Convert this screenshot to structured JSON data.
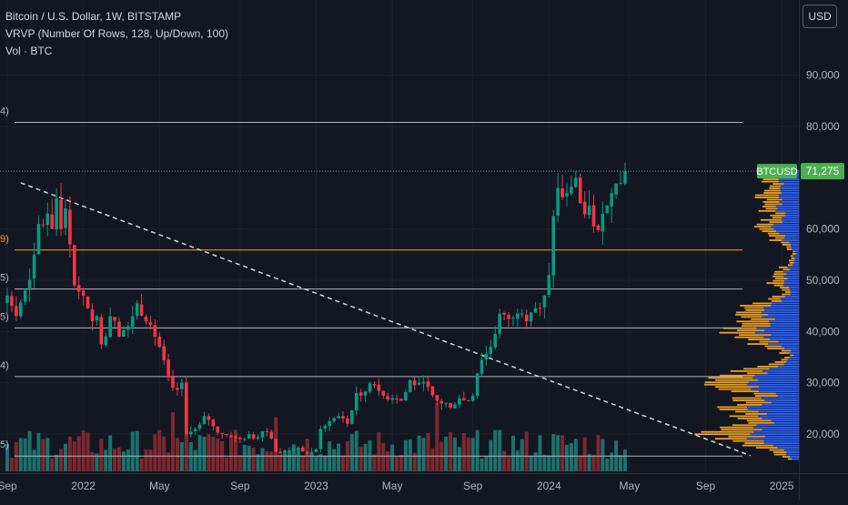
{
  "legend": {
    "symbol_line": "Bitcoin / U.S. Dollar, 1W, BITSTAMP",
    "vrvp_line": "VRVP (Number Of Rows, 128, Up/Down, 100)",
    "vol_line": "Vol · BTC"
  },
  "currency_button": "USD",
  "price_axis": {
    "ticks": [
      {
        "label": "90,000",
        "value": 90000
      },
      {
        "label": "80,000",
        "value": 80000
      },
      {
        "label": "60,000",
        "value": 60000
      },
      {
        "label": "50,000",
        "value": 50000
      },
      {
        "label": "40,000",
        "value": 40000
      },
      {
        "label": "30,000",
        "value": 30000
      },
      {
        "label": "20,000",
        "value": 20000
      }
    ]
  },
  "time_axis": {
    "ticks": [
      {
        "label": "Sep",
        "week": 0
      },
      {
        "label": "2022",
        "week": 17
      },
      {
        "label": "May",
        "week": 34
      },
      {
        "label": "Sep",
        "week": 52
      },
      {
        "label": "2023",
        "week": 69
      },
      {
        "label": "May",
        "week": 86
      },
      {
        "label": "Sep",
        "week": 104
      },
      {
        "label": "2024",
        "week": 121
      },
      {
        "label": "May",
        "week": 139
      },
      {
        "label": "Sep",
        "week": 156
      },
      {
        "label": "2025",
        "week": 173
      }
    ]
  },
  "last_price": {
    "symbol_label": "BTCUSD",
    "value_label": "71,275",
    "value": 71275,
    "color": "#4caf50"
  },
  "horizontal_levels": [
    {
      "price": 80800,
      "color": "#b2b5be",
      "edge_label": "4)"
    },
    {
      "price": 55900,
      "color": "#f7a21b",
      "edge_label": "9)"
    },
    {
      "price": 48300,
      "color": "#b2b5be",
      "edge_label": "5)"
    },
    {
      "price": 40700,
      "color": "#b2b5be",
      "edge_label": "5)"
    },
    {
      "price": 31200,
      "color": "#b2b5be",
      "edge_label": "4)"
    },
    {
      "price": 15700,
      "color": "#b2b5be",
      "edge_label": "5)"
    }
  ],
  "trendline": {
    "from": {
      "week": 3,
      "price": 69000
    },
    "to": {
      "week": 166,
      "price": 15800
    },
    "color": "#d1d4dc"
  },
  "colors": {
    "up": "#089981",
    "down": "#f23645",
    "vol_up": "#1e7b74",
    "vol_down": "#8b2a30",
    "vrvp_up": "#2962ff",
    "vrvp_down": "#f0a020",
    "background": "#131722"
  },
  "chart_data": {
    "type": "candlestick",
    "title": "Bitcoin / U.S. Dollar, 1W, BITSTAMP",
    "ylim": [
      14000,
      98000
    ],
    "x_unit": "weeks from Sep 2021",
    "close_anchors": [
      [
        0,
        47000
      ],
      [
        2,
        43000
      ],
      [
        4,
        48000
      ],
      [
        6,
        55000
      ],
      [
        7,
        61000
      ],
      [
        9,
        63000
      ],
      [
        10,
        60000
      ],
      [
        11,
        66000
      ],
      [
        12,
        60000
      ],
      [
        13,
        64000
      ],
      [
        14,
        57000
      ],
      [
        15,
        49000
      ],
      [
        17,
        47000
      ],
      [
        19,
        42000
      ],
      [
        20,
        43000
      ],
      [
        21,
        37500
      ],
      [
        23,
        43000
      ],
      [
        25,
        39000
      ],
      [
        27,
        41000
      ],
      [
        29,
        45500
      ],
      [
        31,
        42000
      ],
      [
        33,
        39000
      ],
      [
        34,
        37000
      ],
      [
        36,
        31000
      ],
      [
        37,
        29000
      ],
      [
        39,
        30000
      ],
      [
        40,
        20000
      ],
      [
        42,
        21000
      ],
      [
        44,
        23500
      ],
      [
        46,
        21500
      ],
      [
        48,
        20000
      ],
      [
        50,
        19500
      ],
      [
        52,
        19000
      ],
      [
        54,
        20000
      ],
      [
        56,
        19400
      ],
      [
        58,
        20500
      ],
      [
        60,
        16500
      ],
      [
        62,
        16800
      ],
      [
        64,
        17000
      ],
      [
        66,
        16600
      ],
      [
        68,
        16500
      ],
      [
        69,
        17000
      ],
      [
        70,
        21000
      ],
      [
        72,
        22500
      ],
      [
        74,
        23500
      ],
      [
        76,
        22000
      ],
      [
        78,
        28000
      ],
      [
        80,
        28300
      ],
      [
        82,
        29500
      ],
      [
        84,
        27500
      ],
      [
        86,
        27000
      ],
      [
        88,
        26500
      ],
      [
        90,
        30500
      ],
      [
        92,
        30000
      ],
      [
        94,
        29200
      ],
      [
        96,
        26500
      ],
      [
        98,
        26000
      ],
      [
        100,
        25800
      ],
      [
        102,
        26600
      ],
      [
        104,
        27500
      ],
      [
        106,
        34500
      ],
      [
        108,
        37000
      ],
      [
        110,
        43500
      ],
      [
        112,
        42500
      ],
      [
        114,
        43500
      ],
      [
        116,
        42000
      ],
      [
        118,
        44500
      ],
      [
        120,
        47000
      ],
      [
        121,
        51000
      ],
      [
        122,
        62500
      ],
      [
        123,
        68000
      ],
      [
        125,
        67000
      ],
      [
        127,
        70000
      ],
      [
        128,
        65000
      ],
      [
        130,
        64500
      ],
      [
        131,
        60500
      ],
      [
        133,
        63000
      ],
      [
        135,
        67000
      ],
      [
        137,
        69000
      ],
      [
        138,
        71275
      ]
    ],
    "volume_profile_bins": [
      {
        "price": 20000,
        "width": 0.62
      },
      {
        "price": 25000,
        "width": 0.55
      },
      {
        "price": 30000,
        "width": 0.6
      },
      {
        "price": 40000,
        "width": 0.52
      },
      {
        "price": 43000,
        "width": 0.48
      },
      {
        "price": 50000,
        "width": 0.2
      },
      {
        "price": 60000,
        "width": 0.28
      },
      {
        "price": 65000,
        "width": 0.32
      },
      {
        "price": 69000,
        "width": 0.22
      }
    ]
  }
}
